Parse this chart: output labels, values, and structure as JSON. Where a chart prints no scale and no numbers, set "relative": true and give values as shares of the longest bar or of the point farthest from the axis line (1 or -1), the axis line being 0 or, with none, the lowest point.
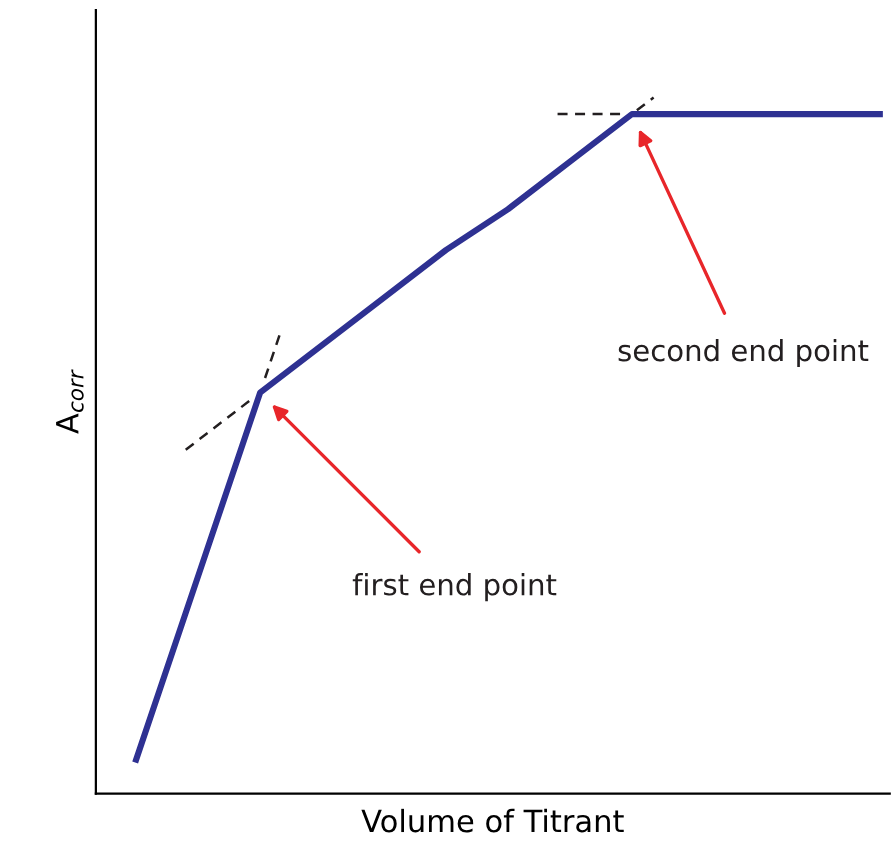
{
  "chart_data": {
    "type": "line",
    "relative": true,
    "xlabel": "Volume of Titrant",
    "ylabel": "A$_{corr}$",
    "categories": [
      null,
      null,
      null,
      null,
      null,
      null,
      null,
      null,
      null,
      null,
      null,
      null,
      null
    ],
    "series": [
      {
        "color": "#2e3192",
        "line_style": "solid",
        "values": [
          0.05,
          0.32,
          0.59,
          0.66,
          0.73,
          0.8,
          0.86,
          0.93,
          1,
          1,
          1,
          1,
          1
        ]
      }
    ],
    "annotations": [
      "first end point",
      "second end point"
    ],
    "grid": false,
    "legend": false,
    "marker": "none"
  }
}
